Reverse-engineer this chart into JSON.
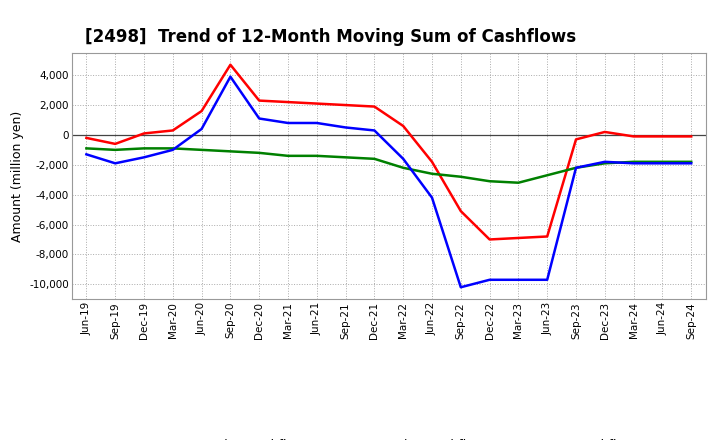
{
  "title": "[2498]  Trend of 12-Month Moving Sum of Cashflows",
  "ylabel": "Amount (million yen)",
  "ylim": [
    -11000,
    5500
  ],
  "yticks": [
    -10000,
    -8000,
    -6000,
    -4000,
    -2000,
    0,
    2000,
    4000
  ],
  "x_labels": [
    "Jun-19",
    "Sep-19",
    "Dec-19",
    "Mar-20",
    "Jun-20",
    "Sep-20",
    "Dec-20",
    "Mar-21",
    "Jun-21",
    "Sep-21",
    "Dec-21",
    "Mar-22",
    "Jun-22",
    "Sep-22",
    "Dec-22",
    "Mar-23",
    "Jun-23",
    "Sep-23",
    "Dec-23",
    "Mar-24",
    "Jun-24",
    "Sep-24"
  ],
  "operating": [
    -200,
    -600,
    100,
    300,
    1600,
    4700,
    2300,
    2200,
    2100,
    2000,
    1900,
    600,
    -1800,
    -5100,
    -7000,
    -6900,
    -6800,
    -300,
    200,
    -100,
    -100,
    -100
  ],
  "investing": [
    -900,
    -1000,
    -900,
    -900,
    -1000,
    -1100,
    -1200,
    -1400,
    -1400,
    -1500,
    -1600,
    -2200,
    -2600,
    -2800,
    -3100,
    -3200,
    -2700,
    -2200,
    -1900,
    -1800,
    -1800,
    -1800
  ],
  "free": [
    -1300,
    -1900,
    -1500,
    -1000,
    400,
    3900,
    1100,
    800,
    800,
    500,
    300,
    -1600,
    -4200,
    -10200,
    -9700,
    -9700,
    -9700,
    -2200,
    -1800,
    -1900,
    -1900,
    -1900
  ],
  "operating_color": "#ff0000",
  "investing_color": "#008000",
  "free_color": "#0000ff",
  "background_color": "#ffffff",
  "grid_color": "#aaaaaa",
  "line_width": 1.8,
  "title_fontsize": 12,
  "legend_fontsize": 9,
  "tick_fontsize": 7.5
}
